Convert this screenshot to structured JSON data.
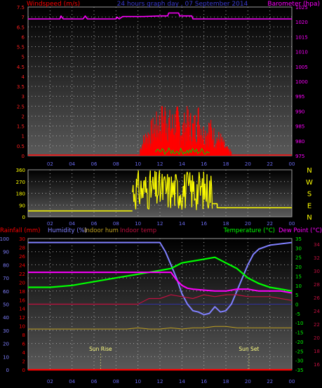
{
  "top": {
    "left_title": "Windspeed (m/s)",
    "center_title": "24 hours graph day , 07 September 2014",
    "right_title": "Barometer (hpa)",
    "left_ticks": [
      "0",
      "0.5",
      "1",
      "1.5",
      "2",
      "2.5",
      "3",
      "3.5",
      "4",
      "4.5",
      "5",
      "5.5",
      "6",
      "6.5",
      "7",
      "7.5"
    ],
    "right_ticks": [
      "975",
      "980",
      "985",
      "990",
      "995",
      "1000",
      "1005",
      "1010",
      "1015",
      "1020",
      "1025"
    ]
  },
  "middle": {
    "left_ticks": [
      "0",
      "90",
      "180",
      "270",
      "360"
    ],
    "compass": [
      "N",
      "W",
      "S",
      "E",
      "N"
    ]
  },
  "bottom": {
    "legend_left": [
      "Rainfall (mm)",
      "Humidity (%)",
      "Indoor hum",
      "Indoor temp"
    ],
    "legend_right": [
      "Temperature (°C)",
      "Dew Point (°C)"
    ],
    "rain_ticks": [
      "0",
      "2",
      "4",
      "6",
      "8",
      "10",
      "12",
      "14",
      "16",
      "18",
      "20",
      "22",
      "24",
      "26",
      "28",
      "30"
    ],
    "hum_ticks": [
      "0",
      "10",
      "20",
      "30",
      "40",
      "50",
      "60",
      "70",
      "80",
      "90",
      "100"
    ],
    "temp_ticks": [
      "-35",
      "-30",
      "-25",
      "-20",
      "-15",
      "-10",
      "-5",
      "0",
      "5",
      "10",
      "15",
      "20",
      "25",
      "30",
      "35"
    ],
    "indoor_ticks": [
      "16",
      "18",
      "20",
      "22",
      "24",
      "26",
      "28",
      "30",
      "32",
      "34"
    ],
    "sun_rise": "Sun Rise",
    "sun_set": "Sun Set"
  },
  "hour_ticks": [
    "02",
    "04",
    "06",
    "08",
    "10",
    "12",
    "14",
    "16",
    "18",
    "20",
    "22",
    "00"
  ],
  "colors": {
    "windspeed": "#ff0000",
    "gust": "#00cc00",
    "barometer": "#ff00ff",
    "direction": "#ffff00",
    "humidity": "#8080ff",
    "temperature": "#00ff00",
    "dewpoint": "#ff00ff",
    "indoor_temp": "#c01040",
    "indoor_hum": "#c0a020",
    "rain": "#ff0000"
  },
  "chart_data": [
    {
      "type": "line",
      "title": "24 hours graph day , 07 September 2014",
      "xlabel": "",
      "ylabel": "Windspeed (m/s)",
      "y2label": "Barometer (hpa)",
      "ylim": [
        0,
        7.5
      ],
      "y2lim": [
        975,
        1025
      ],
      "x_hours": [
        0,
        2,
        4,
        6,
        8,
        10,
        12,
        14,
        16,
        18,
        20,
        22,
        24
      ],
      "series": [
        {
          "name": "Barometer (hpa)",
          "axis": "right",
          "x": [
            0,
            2.9,
            3,
            3.2,
            5,
            5.2,
            5.4,
            8,
            8.1,
            8.3,
            8.6,
            10.5,
            12,
            12.7,
            12.8,
            13.7,
            13.8,
            14.9,
            15,
            24
          ],
          "y": [
            1021,
            1021,
            1022,
            1021,
            1021,
            1022,
            1021,
            1021,
            1021.6,
            1021,
            1021.8,
            1021.8,
            1022,
            1022,
            1023,
            1023,
            1022,
            1022,
            1021,
            1021
          ]
        },
        {
          "x": [
            10,
            10.5,
            11,
            11.5,
            12,
            12.5,
            13,
            13.5,
            14,
            14.5,
            15,
            15.5,
            16,
            16.5,
            17,
            17.5,
            18,
            18.5
          ],
          "y": [
            0.1,
            0.8,
            1.2,
            1.5,
            1.8,
            2.2,
            1.6,
            2.0,
            1.4,
            1.9,
            1.5,
            2.0,
            1.2,
            1.5,
            1.0,
            0.9,
            0.4,
            0.2
          ]
        }
      ]
    },
    {
      "type": "scatter",
      "ylabel": "Wind direction",
      "ylim": [
        0,
        360
      ],
      "series": [
        {
          "x": [
            0,
            1,
            2,
            3,
            4,
            5,
            6,
            7,
            8,
            9,
            9.5,
            10,
            10.5,
            11,
            11.5,
            12,
            12.5,
            13,
            13.5,
            14,
            14.5,
            15,
            15.5,
            16,
            16.5,
            17,
            17.5,
            18,
            19,
            20,
            21,
            22,
            23,
            24
          ],
          "y": [
            45,
            45,
            45,
            45,
            45,
            45,
            45,
            45,
            45,
            45,
            200,
            260,
            180,
            300,
            150,
            270,
            240,
            180,
            310,
            220,
            150,
            250,
            180,
            230,
            120,
            160,
            90,
            90,
            90,
            90,
            90,
            90,
            90,
            90
          ]
        }
      ]
    },
    {
      "type": "line",
      "ylabel": "Humidity (%)",
      "y2label": "Temperature (°C)",
      "ylim": [
        0,
        100
      ],
      "y2lim": [
        -35,
        35
      ],
      "series": [
        {
          "name": "Humidity (%)",
          "axis": "left",
          "x": [
            0,
            4,
            8,
            11,
            12,
            12.5,
            13,
            13.5,
            14,
            14.5,
            15,
            15.5,
            16,
            16.5,
            17,
            17.5,
            18,
            18.5,
            19,
            19.5,
            20,
            20.5,
            21,
            22,
            23,
            24
          ],
          "y": [
            97,
            97,
            97,
            97,
            97,
            90,
            80,
            70,
            58,
            50,
            45,
            44,
            42,
            43,
            48,
            44,
            45,
            50,
            60,
            70,
            80,
            88,
            92,
            95,
            96,
            97
          ]
        },
        {
          "name": "Temperature (°C)",
          "axis": "right",
          "x": [
            0,
            2,
            4,
            6,
            8,
            10,
            12,
            13,
            14,
            15,
            16,
            17,
            18,
            19,
            20,
            21,
            22,
            23,
            24
          ],
          "y": [
            9,
            9,
            10,
            12,
            14,
            16,
            18,
            19,
            22,
            23,
            24,
            25,
            22,
            19,
            14,
            11,
            9,
            8,
            7
          ]
        },
        {
          "name": "Dew Point (°C)",
          "axis": "right",
          "x": [
            0,
            13,
            13.5,
            14,
            14.5,
            15,
            16,
            17,
            18,
            19,
            20,
            21,
            22,
            23,
            24
          ],
          "y": [
            17,
            17,
            13,
            10,
            8.5,
            8,
            7.5,
            7,
            7,
            8,
            8,
            7,
            7,
            7,
            6
          ]
        },
        {
          "name": "Indoor temp",
          "axis": "right",
          "x": [
            0,
            10,
            11,
            12,
            13,
            14,
            15,
            16,
            17,
            18,
            19,
            20,
            21,
            22,
            23,
            24
          ],
          "y": [
            0,
            0,
            3,
            3,
            5,
            4,
            3,
            5,
            4,
            5,
            5,
            4,
            4,
            4,
            3,
            2
          ]
        },
        {
          "name": "Indoor hum",
          "axis": "left",
          "x": [
            0,
            8,
            9,
            10,
            11,
            12,
            13,
            14,
            15,
            16,
            17,
            18,
            19,
            20,
            21,
            22,
            23,
            24
          ],
          "y": [
            31,
            31,
            31,
            32,
            31,
            31,
            32,
            31,
            32,
            32,
            33,
            33,
            32,
            32,
            32,
            32,
            32,
            32
          ]
        },
        {
          "name": "Rainfall (mm)",
          "axis": "left",
          "x": [
            0,
            24
          ],
          "y": [
            0,
            0
          ]
        }
      ]
    }
  ]
}
